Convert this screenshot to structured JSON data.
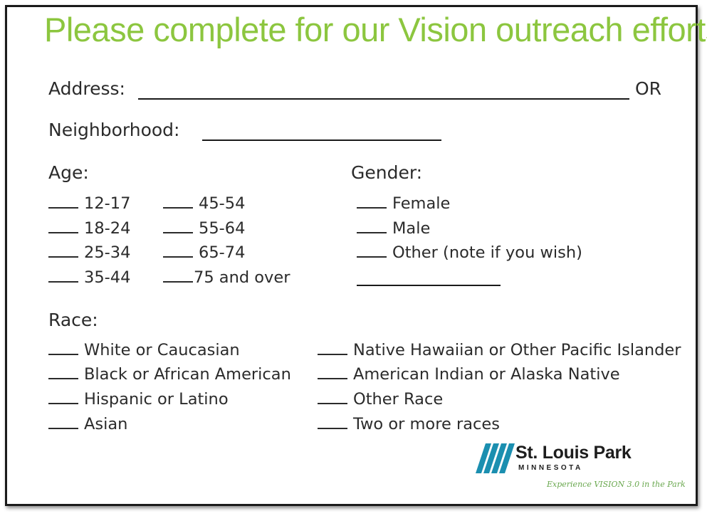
{
  "form": {
    "title": "Please complete for our Vision outreach efforts!",
    "address_label": "Address:",
    "or_label": "OR",
    "neighborhood_label": "Neighborhood:",
    "age": {
      "label": "Age:",
      "options": [
        "12-17",
        "18-24",
        "25-34",
        "35-44",
        "45-54",
        "55-64",
        "65-74",
        "75 and over"
      ]
    },
    "gender": {
      "label": "Gender:",
      "options": [
        "Female",
        "Male",
        "Other (note if you wish)"
      ]
    },
    "race": {
      "label": "Race:",
      "options": [
        "White or Caucasian",
        "Black or African American",
        "Hispanic or Latino",
        "Asian",
        "Native Hawaiian or Other Pacific Islander",
        "American Indian or Alaska Native",
        "Other Race",
        "Two or more races"
      ]
    }
  },
  "logo": {
    "name": "St. Louis Park",
    "state": "MINNESOTA",
    "tagline": "Experience VISION 3.0 in the Park",
    "colors": {
      "mark": "#1b8fb0",
      "tagline": "#6aa84f"
    }
  },
  "colors": {
    "title": "#8cc63f",
    "text": "#2b2b2b"
  }
}
